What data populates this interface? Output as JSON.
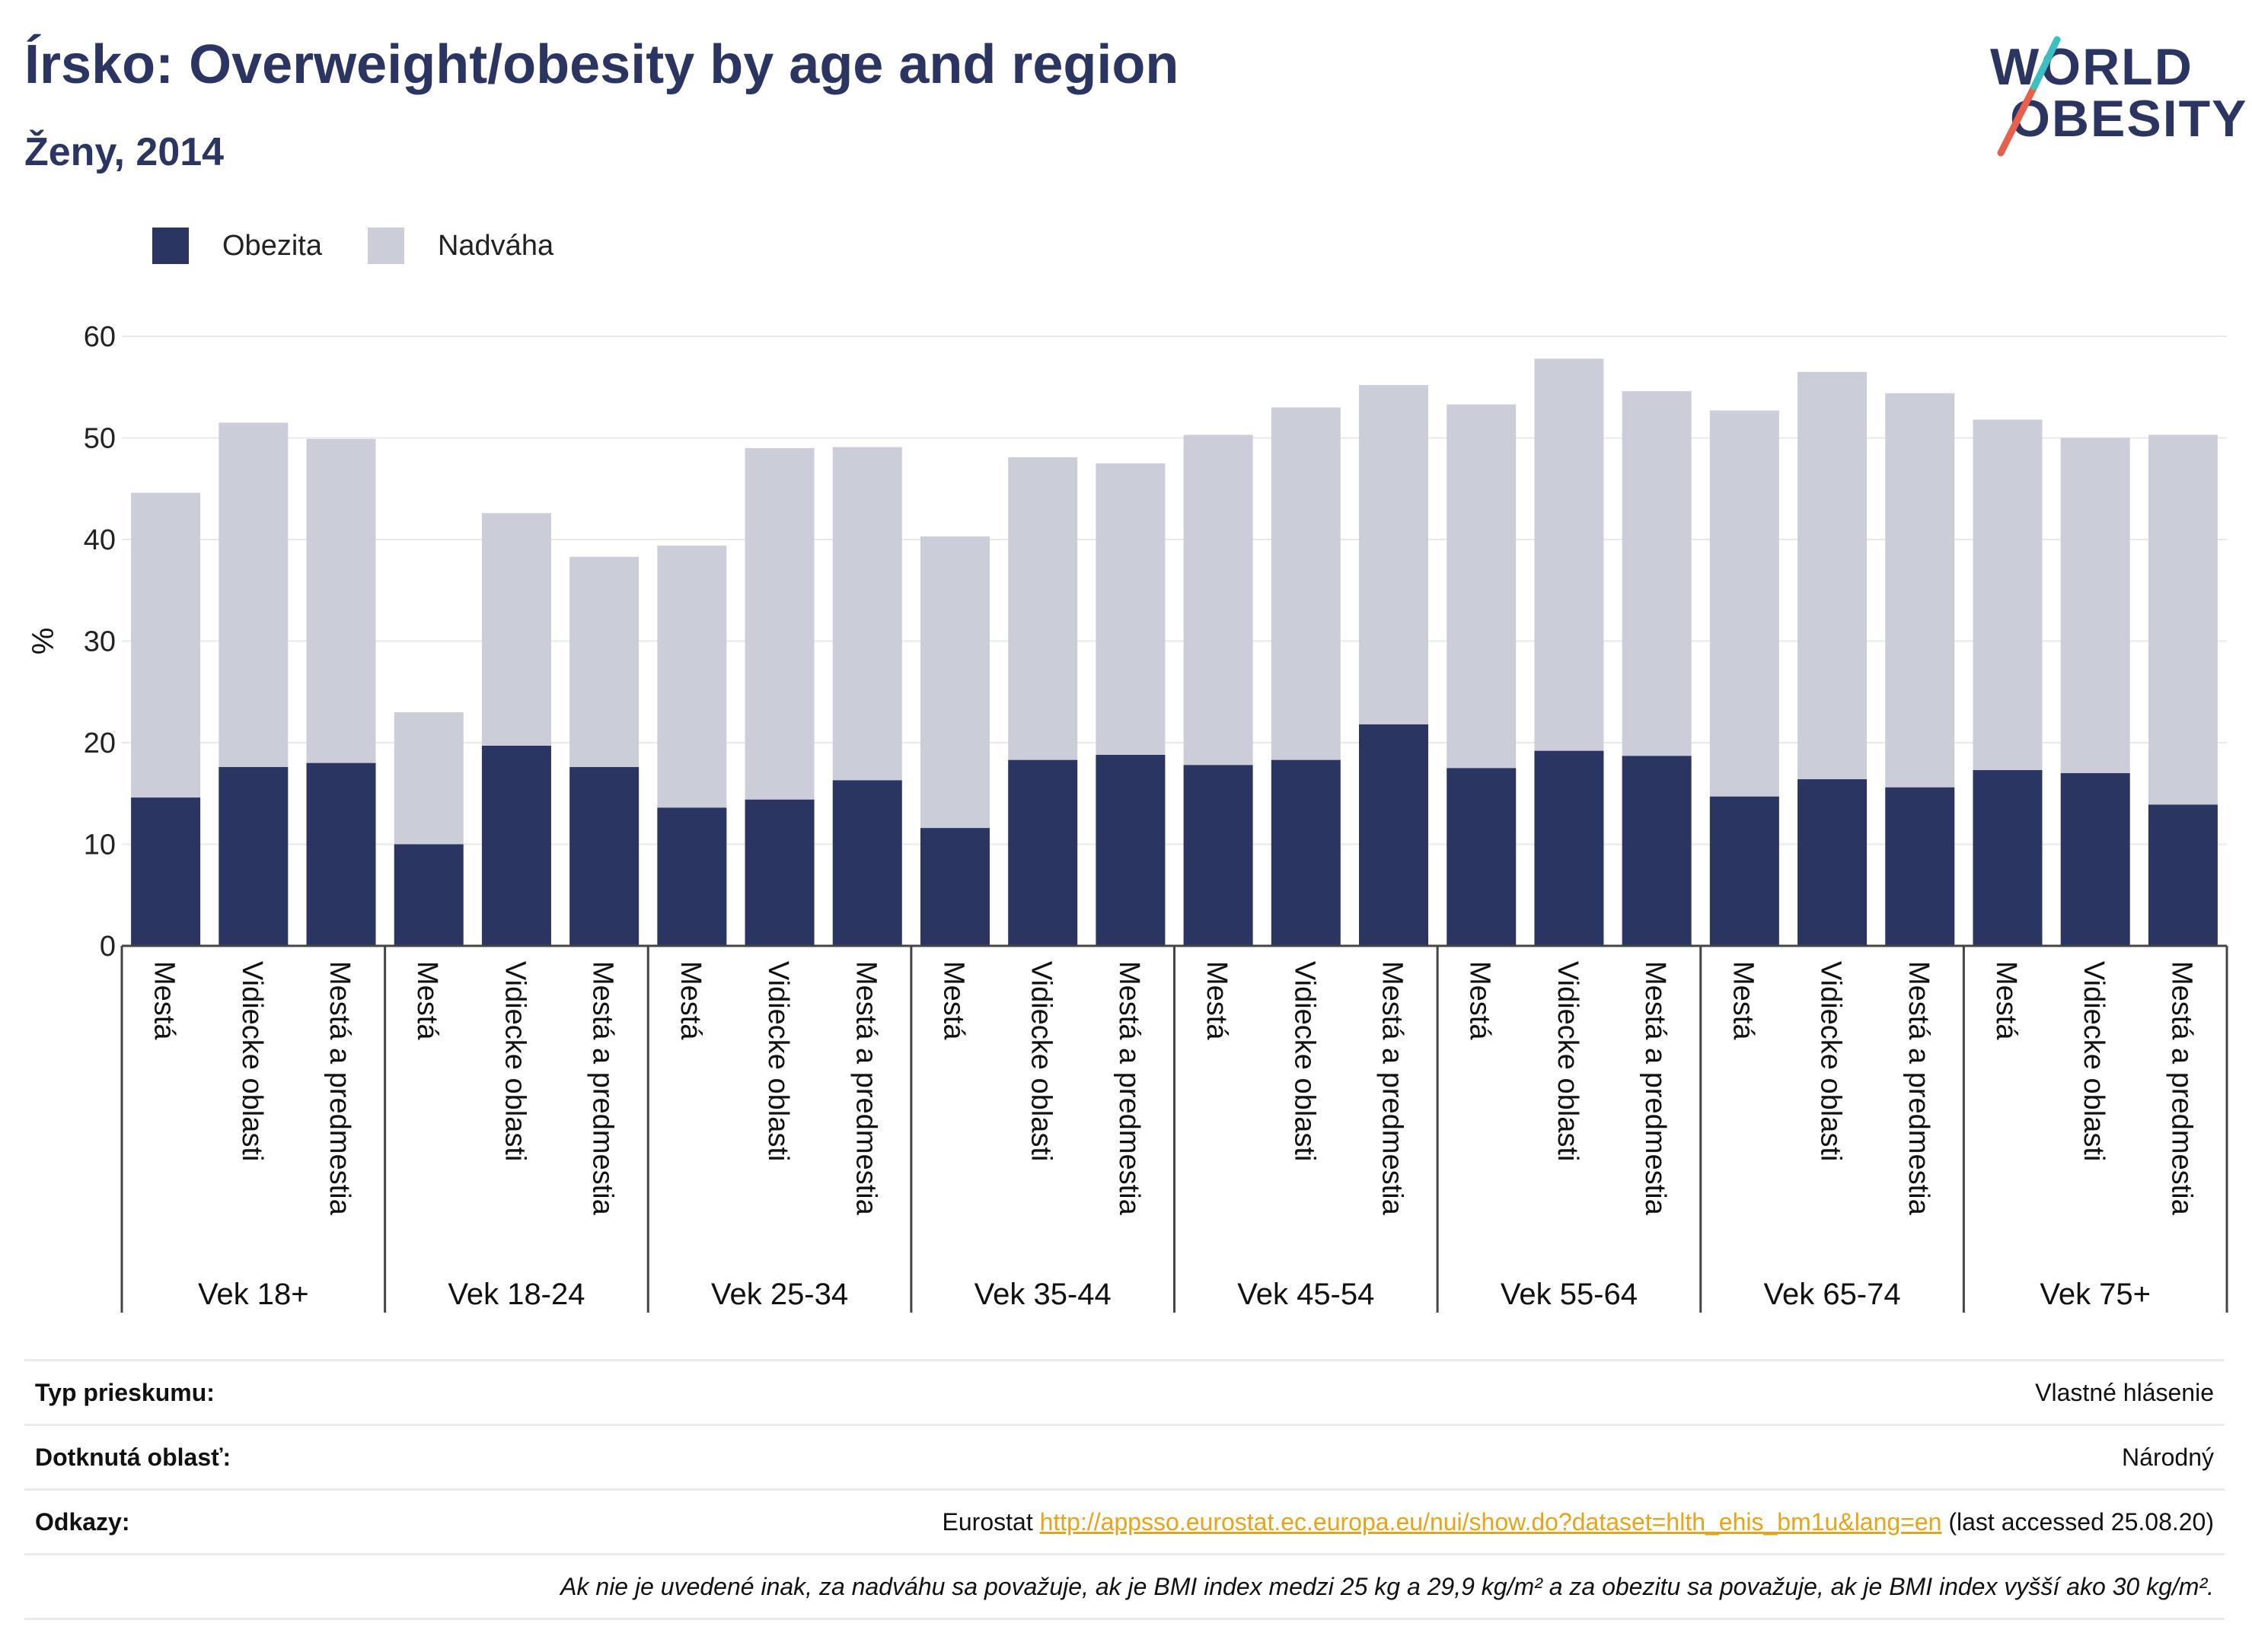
{
  "header": {
    "title": "Írsko: Overweight/obesity by age and region",
    "subtitle": "Ženy, 2014"
  },
  "logo": {
    "line1": "WORLD",
    "line2": "OBESITY"
  },
  "colors": {
    "obesity": "#2a3561",
    "overweight": "#cbcdd8",
    "title": "#2a3561",
    "link": "#e8a317",
    "logo_slash_red": "#e8604c",
    "logo_slash_teal": "#3bbfc1"
  },
  "legend": {
    "obesity_label": "Obezita",
    "overweight_label": "Nadváha"
  },
  "chart_data": {
    "type": "bar",
    "stacked": true,
    "ylabel": "%",
    "ylim": [
      0,
      60
    ],
    "yticks": [
      0,
      10,
      20,
      30,
      40,
      50,
      60
    ],
    "grid": true,
    "legend_position": "top-left",
    "groups": [
      "Vek 18+",
      "Vek 18-24",
      "Vek 25-34",
      "Vek 35-44",
      "Vek 45-54",
      "Vek 55-64",
      "Vek 65-74",
      "Vek 75+"
    ],
    "subcategories": [
      "Mestá",
      "Vidiecke oblasti",
      "Mestá a predmestia"
    ],
    "series": [
      {
        "name": "Obezita",
        "values": [
          14.6,
          17.6,
          18.0,
          10.0,
          19.7,
          17.6,
          13.6,
          14.4,
          16.3,
          11.6,
          18.3,
          18.8,
          17.8,
          18.3,
          21.8,
          17.5,
          19.2,
          18.7,
          14.7,
          16.4,
          15.6,
          17.3,
          17.0,
          13.9
        ]
      },
      {
        "name": "Nadváha",
        "values": [
          30.0,
          33.9,
          31.9,
          13.0,
          22.9,
          20.7,
          25.8,
          34.6,
          32.8,
          28.7,
          29.8,
          28.7,
          32.5,
          34.7,
          33.4,
          35.8,
          38.6,
          35.9,
          38.0,
          40.1,
          38.8,
          34.5,
          33.0,
          36.4
        ]
      }
    ]
  },
  "info": {
    "survey_type_label": "Typ prieskumu:",
    "survey_type_value": "Vlastné hlásenie",
    "coverage_label": "Dotknutá oblasť:",
    "coverage_value": "Národný",
    "references_label": "Odkazy:",
    "reference_source": "Eurostat",
    "reference_url": "http://appsso.eurostat.ec.europa.eu/nui/show.do?dataset=hlth_ehis_bm1u&lang=en",
    "reference_accessed": "(last accessed 25.08.20)",
    "note": "Ak nie je uvedené inak, za nadváhu sa považuje, ak je BMI index medzi 25 kg a 29,9 kg/m² a za obezitu sa považuje, ak je BMI index vyšší ako 30 kg/m²."
  }
}
